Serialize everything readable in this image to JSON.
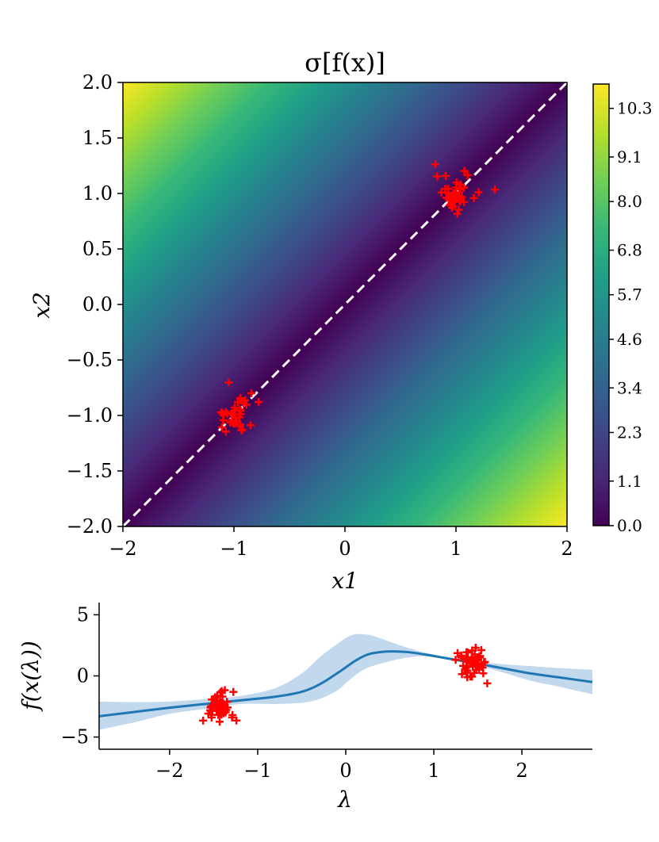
{
  "chart_data": [
    {
      "type": "heatmap",
      "title": "σ[f(x)]",
      "xlabel": "x1",
      "ylabel": "x2",
      "xlim": [
        -2,
        2
      ],
      "ylim": [
        -2,
        2
      ],
      "x_ticks": [
        "−2",
        "−1",
        "0",
        "1",
        "2"
      ],
      "y_ticks": [
        "2.0",
        "1.5",
        "1.0",
        "0.5",
        "0.0",
        "−0.5",
        "−1.0",
        "−1.5",
        "−2.0"
      ],
      "colormap": "viridis",
      "colorbar": {
        "range": [
          0.0,
          10.9
        ],
        "ticks": [
          "10.3",
          "9.1",
          "8.0",
          "6.8",
          "5.7",
          "4.6",
          "3.4",
          "2.3",
          "1.1",
          "0.0"
        ]
      },
      "diagonal": {
        "from": [
          -2,
          -2
        ],
        "to": [
          2,
          2
        ],
        "style": "dashed",
        "color": "#ffffff"
      },
      "clusters": [
        {
          "center": [
            1.0,
            1.0
          ],
          "color": "#ff0000",
          "marker": "+",
          "count": 40
        },
        {
          "center": [
            -1.0,
            -1.0
          ],
          "color": "#ff0000",
          "marker": "+",
          "count": 40
        }
      ]
    },
    {
      "type": "line",
      "xlabel": "λ",
      "ylabel": "f(x(λ))",
      "xlim": [
        -2.8,
        2.8
      ],
      "ylim": [
        -6,
        6
      ],
      "x_ticks": [
        "−2",
        "−1",
        "0",
        "1",
        "2"
      ],
      "y_ticks": [
        "5",
        "0",
        "−5"
      ],
      "mean": {
        "x": [
          -2.8,
          -2.4,
          -2.0,
          -1.6,
          -1.2,
          -0.8,
          -0.5,
          -0.3,
          -0.1,
          0.0,
          0.1,
          0.2,
          0.3,
          0.5,
          0.7,
          0.9,
          1.1,
          1.3,
          1.5,
          1.8,
          2.1,
          2.4,
          2.8
        ],
        "y": [
          -3.3,
          -2.95,
          -2.6,
          -2.3,
          -2.0,
          -1.7,
          -1.3,
          -0.7,
          0.2,
          0.7,
          1.2,
          1.6,
          1.85,
          2.0,
          1.95,
          1.75,
          1.5,
          1.25,
          1.0,
          0.6,
          0.2,
          -0.1,
          -0.5
        ],
        "color": "#1f77b4"
      },
      "band_upper": [
        -2.1,
        -2.15,
        -2.1,
        -1.9,
        -1.65,
        -1.0,
        0.2,
        1.5,
        2.6,
        3.1,
        3.4,
        3.4,
        3.3,
        2.8,
        2.3,
        1.9,
        1.6,
        1.35,
        1.15,
        0.95,
        0.8,
        0.65,
        0.5
      ],
      "band_lower": [
        -4.4,
        -3.8,
        -3.1,
        -2.7,
        -2.3,
        -2.3,
        -2.2,
        -1.9,
        -1.2,
        -0.6,
        0.0,
        0.5,
        0.8,
        1.2,
        1.5,
        1.6,
        1.4,
        1.15,
        0.85,
        0.25,
        -0.4,
        -0.85,
        -1.5
      ],
      "band_color": "#c2d8ed",
      "clusters": [
        {
          "center": [
            -1.45,
            -2.6
          ],
          "color": "#ff0000",
          "marker": "+",
          "count": 50
        },
        {
          "center": [
            1.45,
            1.05
          ],
          "color": "#ff0000",
          "marker": "+",
          "count": 50
        }
      ]
    }
  ]
}
